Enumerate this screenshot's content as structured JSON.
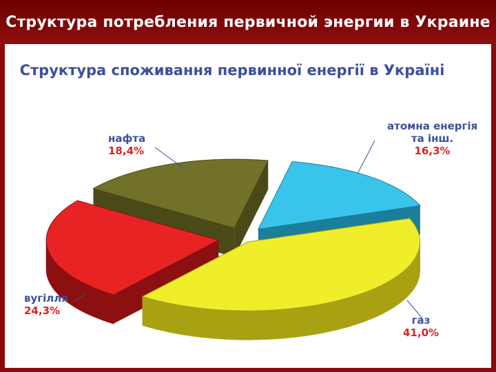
{
  "header": {
    "title": "Структура потребления первичной энергии в Украине"
  },
  "colors": {
    "header_bg": "#8a0b0b",
    "label_name": "#3b4f9c",
    "label_value": "#e02020"
  },
  "chart_data": {
    "type": "pie",
    "title": "Структура споживання первинної енергії в Україні",
    "slices": [
      {
        "name": "газ",
        "value": 41.0,
        "label": "41,0%",
        "color": "#f0ee2a",
        "side": "#a8a212"
      },
      {
        "name": "атомна енергія та інш.",
        "name_lines": [
          "атомна енергія",
          "та інш."
        ],
        "value": 16.3,
        "label": "16,3%",
        "color": "#39c4ec",
        "side": "#1b7f9c"
      },
      {
        "name": "нафта",
        "value": 18.4,
        "label": "18,4%",
        "color": "#72712a",
        "side": "#4a4918"
      },
      {
        "name": "вугілля",
        "value": 24.3,
        "label": "24,3%",
        "color": "#e82323",
        "side": "#8c1010"
      }
    ],
    "legend": "none"
  }
}
